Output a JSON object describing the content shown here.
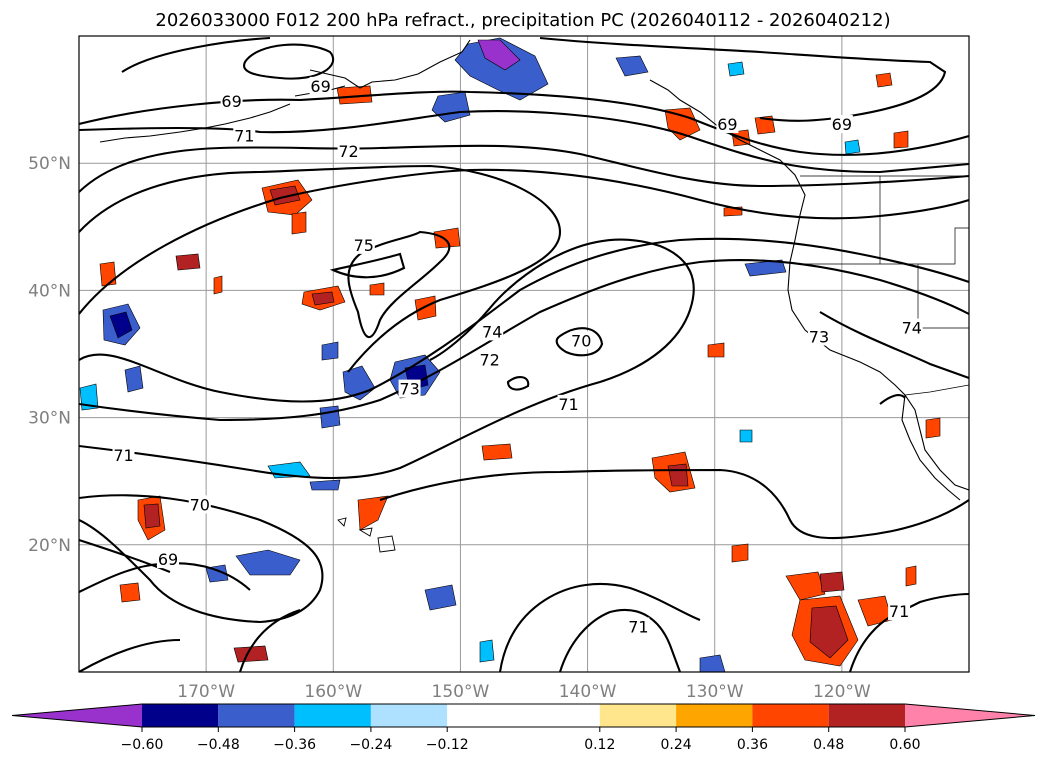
{
  "title": "2026033000 F012 200 hPa refract., precipitation PC (2026040112 - 2026040212)",
  "map": {
    "lat_labels": [
      {
        "text": "50°N",
        "value": 50
      },
      {
        "text": "40°N",
        "value": 40
      },
      {
        "text": "30°N",
        "value": 30
      },
      {
        "text": "20°N",
        "value": 20
      }
    ],
    "lon_labels": [
      {
        "text": "170°W",
        "value": -170
      },
      {
        "text": "160°W",
        "value": -160
      },
      {
        "text": "150°W",
        "value": -150
      },
      {
        "text": "140°W",
        "value": -140
      },
      {
        "text": "130°W",
        "value": -130
      },
      {
        "text": "120°W",
        "value": -120
      }
    ],
    "contour_labels": [
      {
        "text": "69",
        "lon": -161,
        "lat": 56.0
      },
      {
        "text": "69",
        "lon": -168,
        "lat": 54.8
      },
      {
        "text": "71",
        "lon": -167,
        "lat": 52.1
      },
      {
        "text": "72",
        "lon": -158.8,
        "lat": 50.9
      },
      {
        "text": "69",
        "lon": -129,
        "lat": 53.0
      },
      {
        "text": "69",
        "lon": -120,
        "lat": 53.0
      },
      {
        "text": "75",
        "lon": -157.6,
        "lat": 43.5
      },
      {
        "text": "74",
        "lon": -147.5,
        "lat": 36.7
      },
      {
        "text": "72",
        "lon": -147.7,
        "lat": 34.5
      },
      {
        "text": "73",
        "lon": -154,
        "lat": 32.2
      },
      {
        "text": "70",
        "lon": -140.5,
        "lat": 36.0
      },
      {
        "text": "71",
        "lon": -141.5,
        "lat": 31.0
      },
      {
        "text": "73",
        "lon": -121.8,
        "lat": 36.3
      },
      {
        "text": "74",
        "lon": -114.5,
        "lat": 37.0
      },
      {
        "text": "71",
        "lon": -176.5,
        "lat": 27.0
      },
      {
        "text": "70",
        "lon": -170.5,
        "lat": 23.1
      },
      {
        "text": "69",
        "lon": -173,
        "lat": 18.8
      },
      {
        "text": "71",
        "lon": -136,
        "lat": 13.5
      },
      {
        "text": "71",
        "lon": -115.5,
        "lat": 14.7
      }
    ]
  },
  "colorbar": {
    "bounds": [
      -0.72,
      -0.6,
      -0.48,
      -0.36,
      -0.24,
      -0.12,
      0.12,
      0.24,
      0.36,
      0.48,
      0.6,
      0.72
    ],
    "colors": [
      "#9932CC",
      "#00008B",
      "#3A5FCD",
      "#00BFFF",
      "#ADE1FF",
      "#FFFFFF",
      "#FFE68C",
      "#FFA500",
      "#FF4500",
      "#B22222",
      "#FF82AB"
    ],
    "labels": [
      "−0.60",
      "−0.48",
      "−0.36",
      "−0.24",
      "−0.12",
      "0.12",
      "0.24",
      "0.36",
      "0.48",
      "0.60"
    ],
    "extend": "both"
  }
}
